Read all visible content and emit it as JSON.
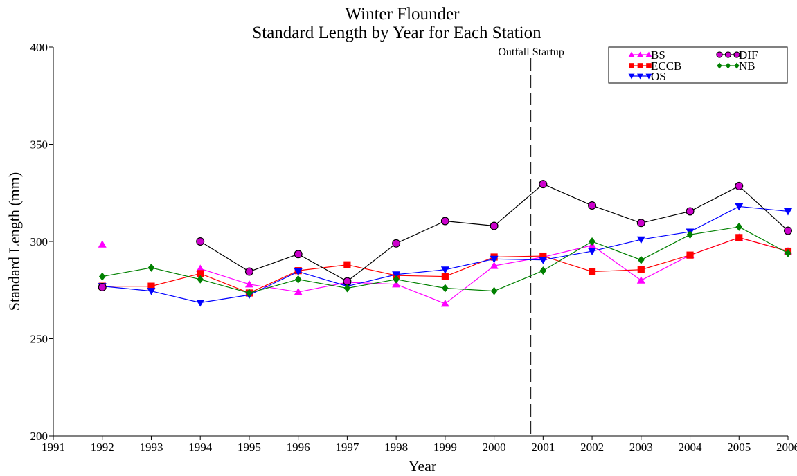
{
  "chart_data": {
    "type": "line",
    "title": "Winter Flounder",
    "subtitle": "Standard Length by Year for Each Station",
    "xlabel": "Year",
    "ylabel": "Standard Length (mm)",
    "x": [
      1991,
      1992,
      1993,
      1994,
      1995,
      1996,
      1997,
      1998,
      1999,
      2000,
      2001,
      2002,
      2003,
      2004,
      2005,
      2006
    ],
    "xlim": [
      1991,
      2006
    ],
    "ylim": [
      200,
      400
    ],
    "yticks": [
      200,
      250,
      300,
      350,
      400
    ],
    "grid": false,
    "legend_position": "top-right",
    "annotation": {
      "label": "Outfall Startup",
      "x": 2000.75,
      "style": "dashed"
    },
    "series": [
      {
        "name": "BS",
        "color": "#ff00ff",
        "marker": "triangle-up",
        "points": [
          [
            1992,
            298.5
          ],
          [
            1994,
            286
          ],
          [
            1995,
            278
          ],
          [
            1996,
            274
          ],
          [
            1997,
            279
          ],
          [
            1998,
            278
          ],
          [
            1999,
            268
          ],
          [
            2000,
            287.5
          ],
          [
            2001,
            292
          ],
          [
            2002,
            298
          ],
          [
            2003,
            280
          ],
          [
            2004,
            293
          ],
          [
            2005,
            302
          ],
          [
            2006,
            295
          ]
        ]
      },
      {
        "name": "ECCB",
        "color": "#ff0000",
        "marker": "square",
        "points": [
          [
            1992,
            277
          ],
          [
            1993,
            277
          ],
          [
            1994,
            283.5
          ],
          [
            1995,
            273.5
          ],
          [
            1996,
            285
          ],
          [
            1997,
            288
          ],
          [
            1998,
            282.5
          ],
          [
            1999,
            282
          ],
          [
            2000,
            292
          ],
          [
            2001,
            292.5
          ],
          [
            2002,
            284.5
          ],
          [
            2003,
            285.5
          ],
          [
            2004,
            293
          ],
          [
            2005,
            302
          ],
          [
            2006,
            295
          ]
        ]
      },
      {
        "name": "OS",
        "color": "#0000ff",
        "marker": "triangle-down",
        "points": [
          [
            1992,
            277
          ],
          [
            1993,
            274.5
          ],
          [
            1994,
            268.5
          ],
          [
            1995,
            272.5
          ],
          [
            1996,
            284.5
          ],
          [
            1997,
            277
          ],
          [
            1998,
            283
          ],
          [
            1999,
            285.5
          ],
          [
            2000,
            291
          ],
          [
            2001,
            290.5
          ],
          [
            2002,
            295
          ],
          [
            2003,
            301
          ],
          [
            2004,
            305
          ],
          [
            2005,
            318
          ],
          [
            2006,
            315.5
          ]
        ]
      },
      {
        "name": "DIF",
        "color": "#000000",
        "fill": "#cc00cc",
        "marker": "circle",
        "points": [
          [
            1992,
            276.5
          ],
          [
            1994,
            300
          ],
          [
            1995,
            284.5
          ],
          [
            1996,
            293.5
          ],
          [
            1997,
            279.5
          ],
          [
            1998,
            299
          ],
          [
            1999,
            310.5
          ],
          [
            2000,
            308
          ],
          [
            2001,
            329.5
          ],
          [
            2002,
            318.5
          ],
          [
            2003,
            309.5
          ],
          [
            2004,
            315.5
          ],
          [
            2005,
            328.5
          ],
          [
            2006,
            305.5
          ]
        ]
      },
      {
        "name": "NB",
        "color": "#008000",
        "marker": "diamond",
        "points": [
          [
            1992,
            282
          ],
          [
            1993,
            286.5
          ],
          [
            1994,
            280.5
          ],
          [
            1995,
            273.5
          ],
          [
            1996,
            280.5
          ],
          [
            1997,
            276
          ],
          [
            1998,
            280.5
          ],
          [
            1999,
            276
          ],
          [
            2000,
            274.5
          ],
          [
            2001,
            285
          ],
          [
            2002,
            300
          ],
          [
            2003,
            290.5
          ],
          [
            2004,
            303.5
          ],
          [
            2005,
            307.5
          ],
          [
            2006,
            294
          ]
        ]
      }
    ]
  }
}
